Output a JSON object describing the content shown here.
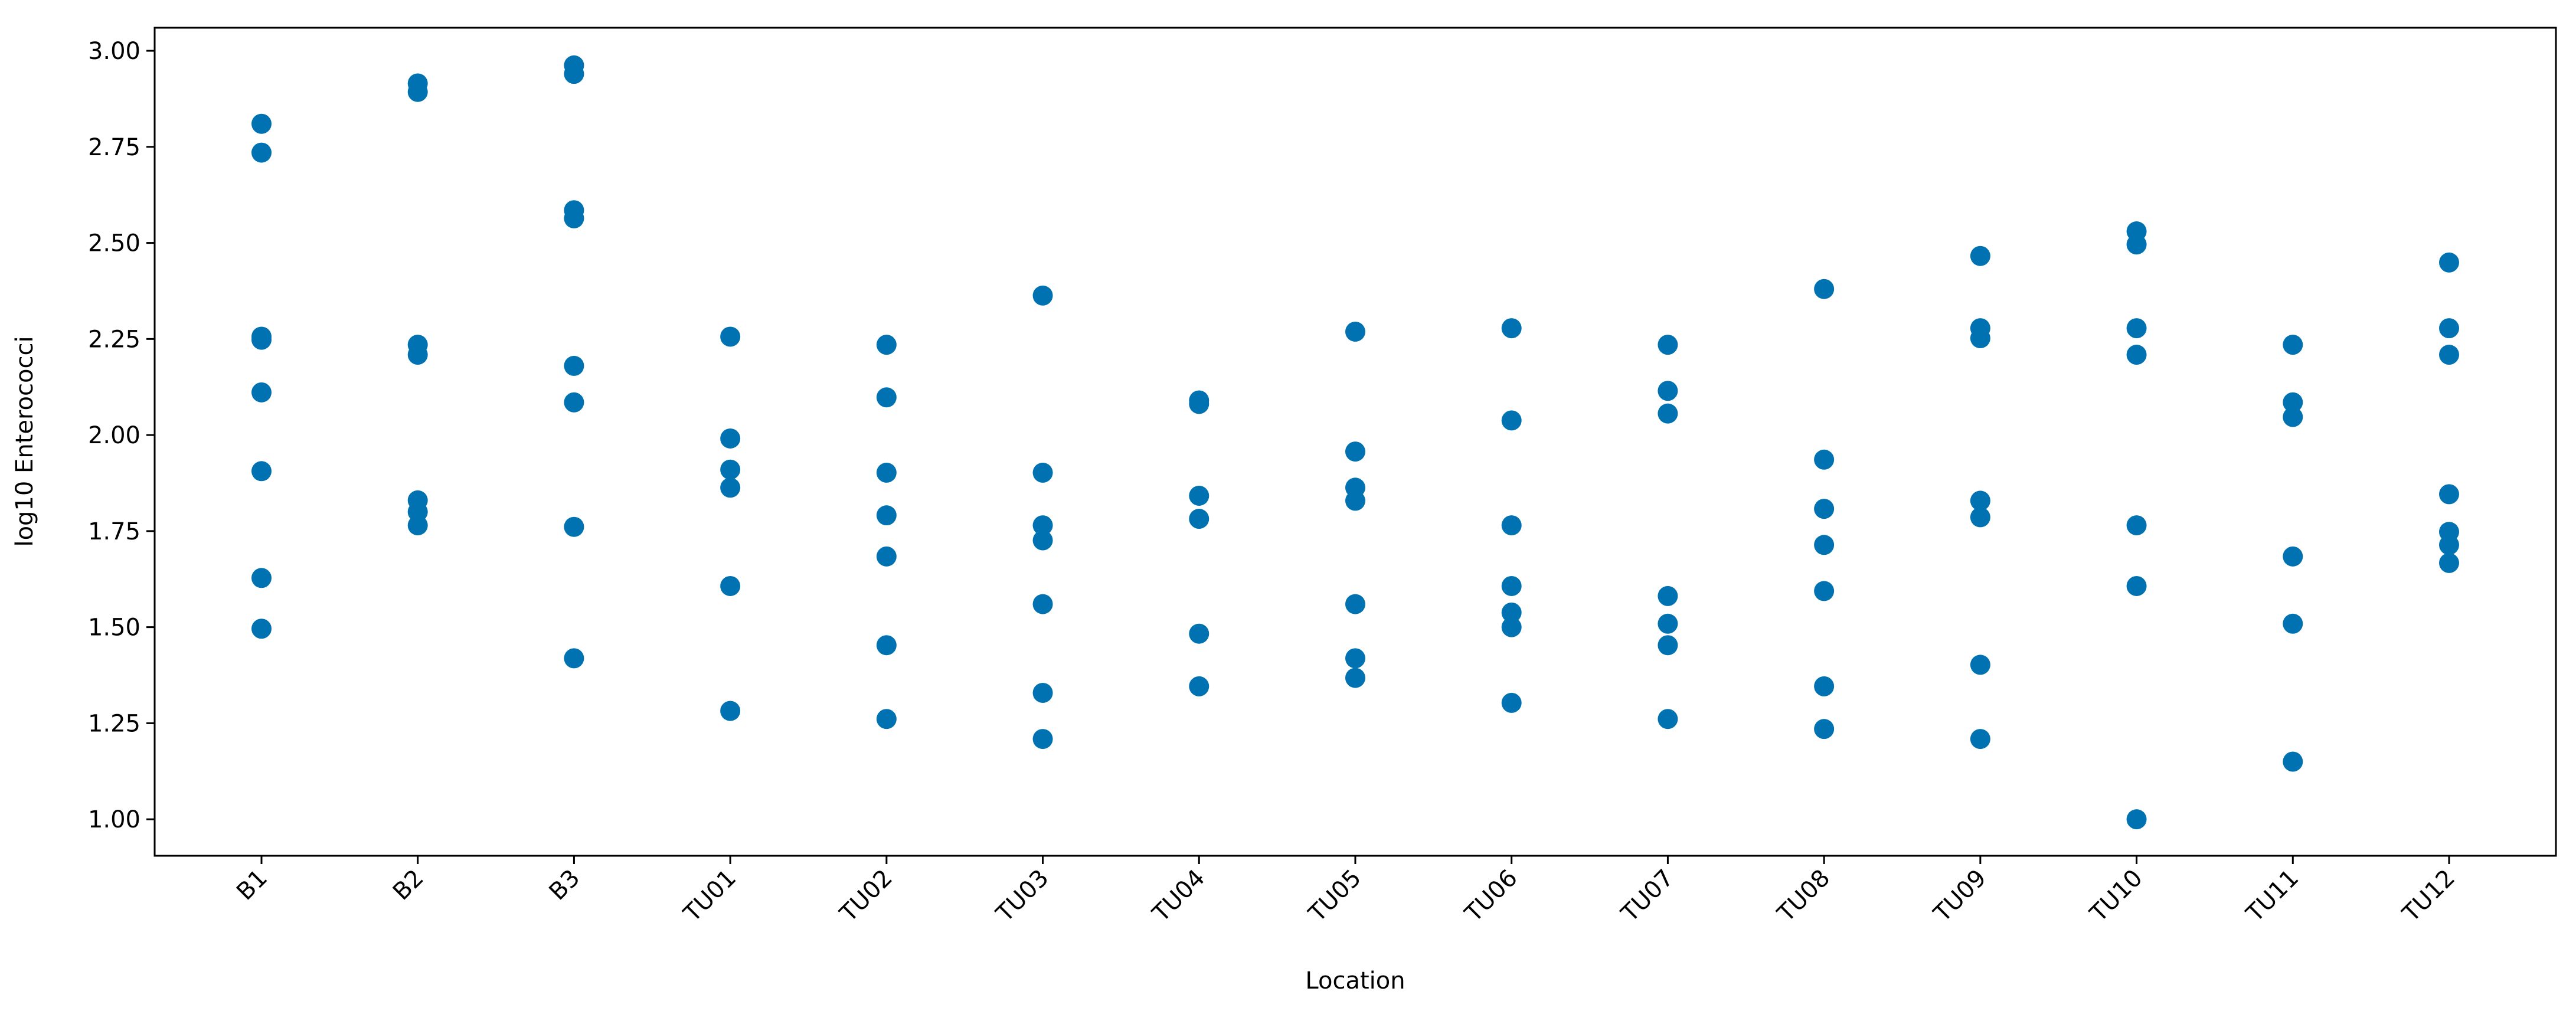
{
  "chart_data": {
    "type": "scatter",
    "x_label": "Location",
    "y_label": "log10 Enterococci",
    "color": "#0072b2",
    "categories": [
      "B1",
      "B2",
      "B3",
      "TU01",
      "TU02",
      "TU03",
      "TU04",
      "TU05",
      "TU06",
      "TU07",
      "TU08",
      "TU09",
      "TU10",
      "TU11",
      "TU12"
    ],
    "values": [
      [
        2.81,
        2.735,
        2.256,
        2.248,
        2.111,
        1.906,
        1.628,
        1.496
      ],
      [
        2.915,
        2.893,
        2.235,
        2.209,
        1.83,
        1.8,
        1.765
      ],
      [
        2.962,
        2.94,
        2.585,
        2.564,
        2.18,
        2.085,
        1.761,
        1.419
      ],
      [
        2.256,
        1.991,
        1.91,
        1.863,
        1.607,
        1.282
      ],
      [
        2.235,
        2.098,
        1.902,
        1.791,
        1.684,
        1.453,
        1.261
      ],
      [
        2.363,
        1.902,
        1.765,
        1.726,
        1.56,
        1.329,
        1.209
      ],
      [
        2.09,
        2.081,
        1.842,
        1.782,
        1.483,
        1.346
      ],
      [
        2.269,
        1.957,
        1.863,
        1.829,
        1.56,
        1.419,
        1.368
      ],
      [
        2.278,
        2.038,
        1.765,
        1.607,
        1.538,
        1.5,
        1.303
      ],
      [
        2.235,
        2.115,
        2.056,
        1.581,
        1.509,
        1.453,
        1.261
      ],
      [
        2.38,
        1.936,
        1.808,
        1.714,
        1.594,
        1.346,
        1.235
      ],
      [
        2.466,
        2.278,
        2.252,
        1.829,
        1.786,
        1.402,
        1.209
      ],
      [
        2.53,
        2.496,
        2.278,
        2.209,
        1.765,
        1.607,
        1.0
      ],
      [
        2.235,
        2.085,
        2.047,
        1.684,
        1.509,
        1.15
      ],
      [
        2.449,
        2.278,
        2.209,
        1.846,
        1.748,
        1.714,
        1.667
      ]
    ],
    "ylim": [
      0.905,
      3.06
    ],
    "yticks": [
      {
        "value": 1,
        "label": "1.00"
      },
      1.25,
      {
        "value": 1.5,
        "label": "1.50"
      },
      1.75,
      {
        "value": 2,
        "label": "2.00"
      },
      2.25,
      {
        "value": 2.5,
        "label": "2.50"
      },
      2.75,
      {
        "value": 3,
        "label": "3.00"
      }
    ]
  }
}
